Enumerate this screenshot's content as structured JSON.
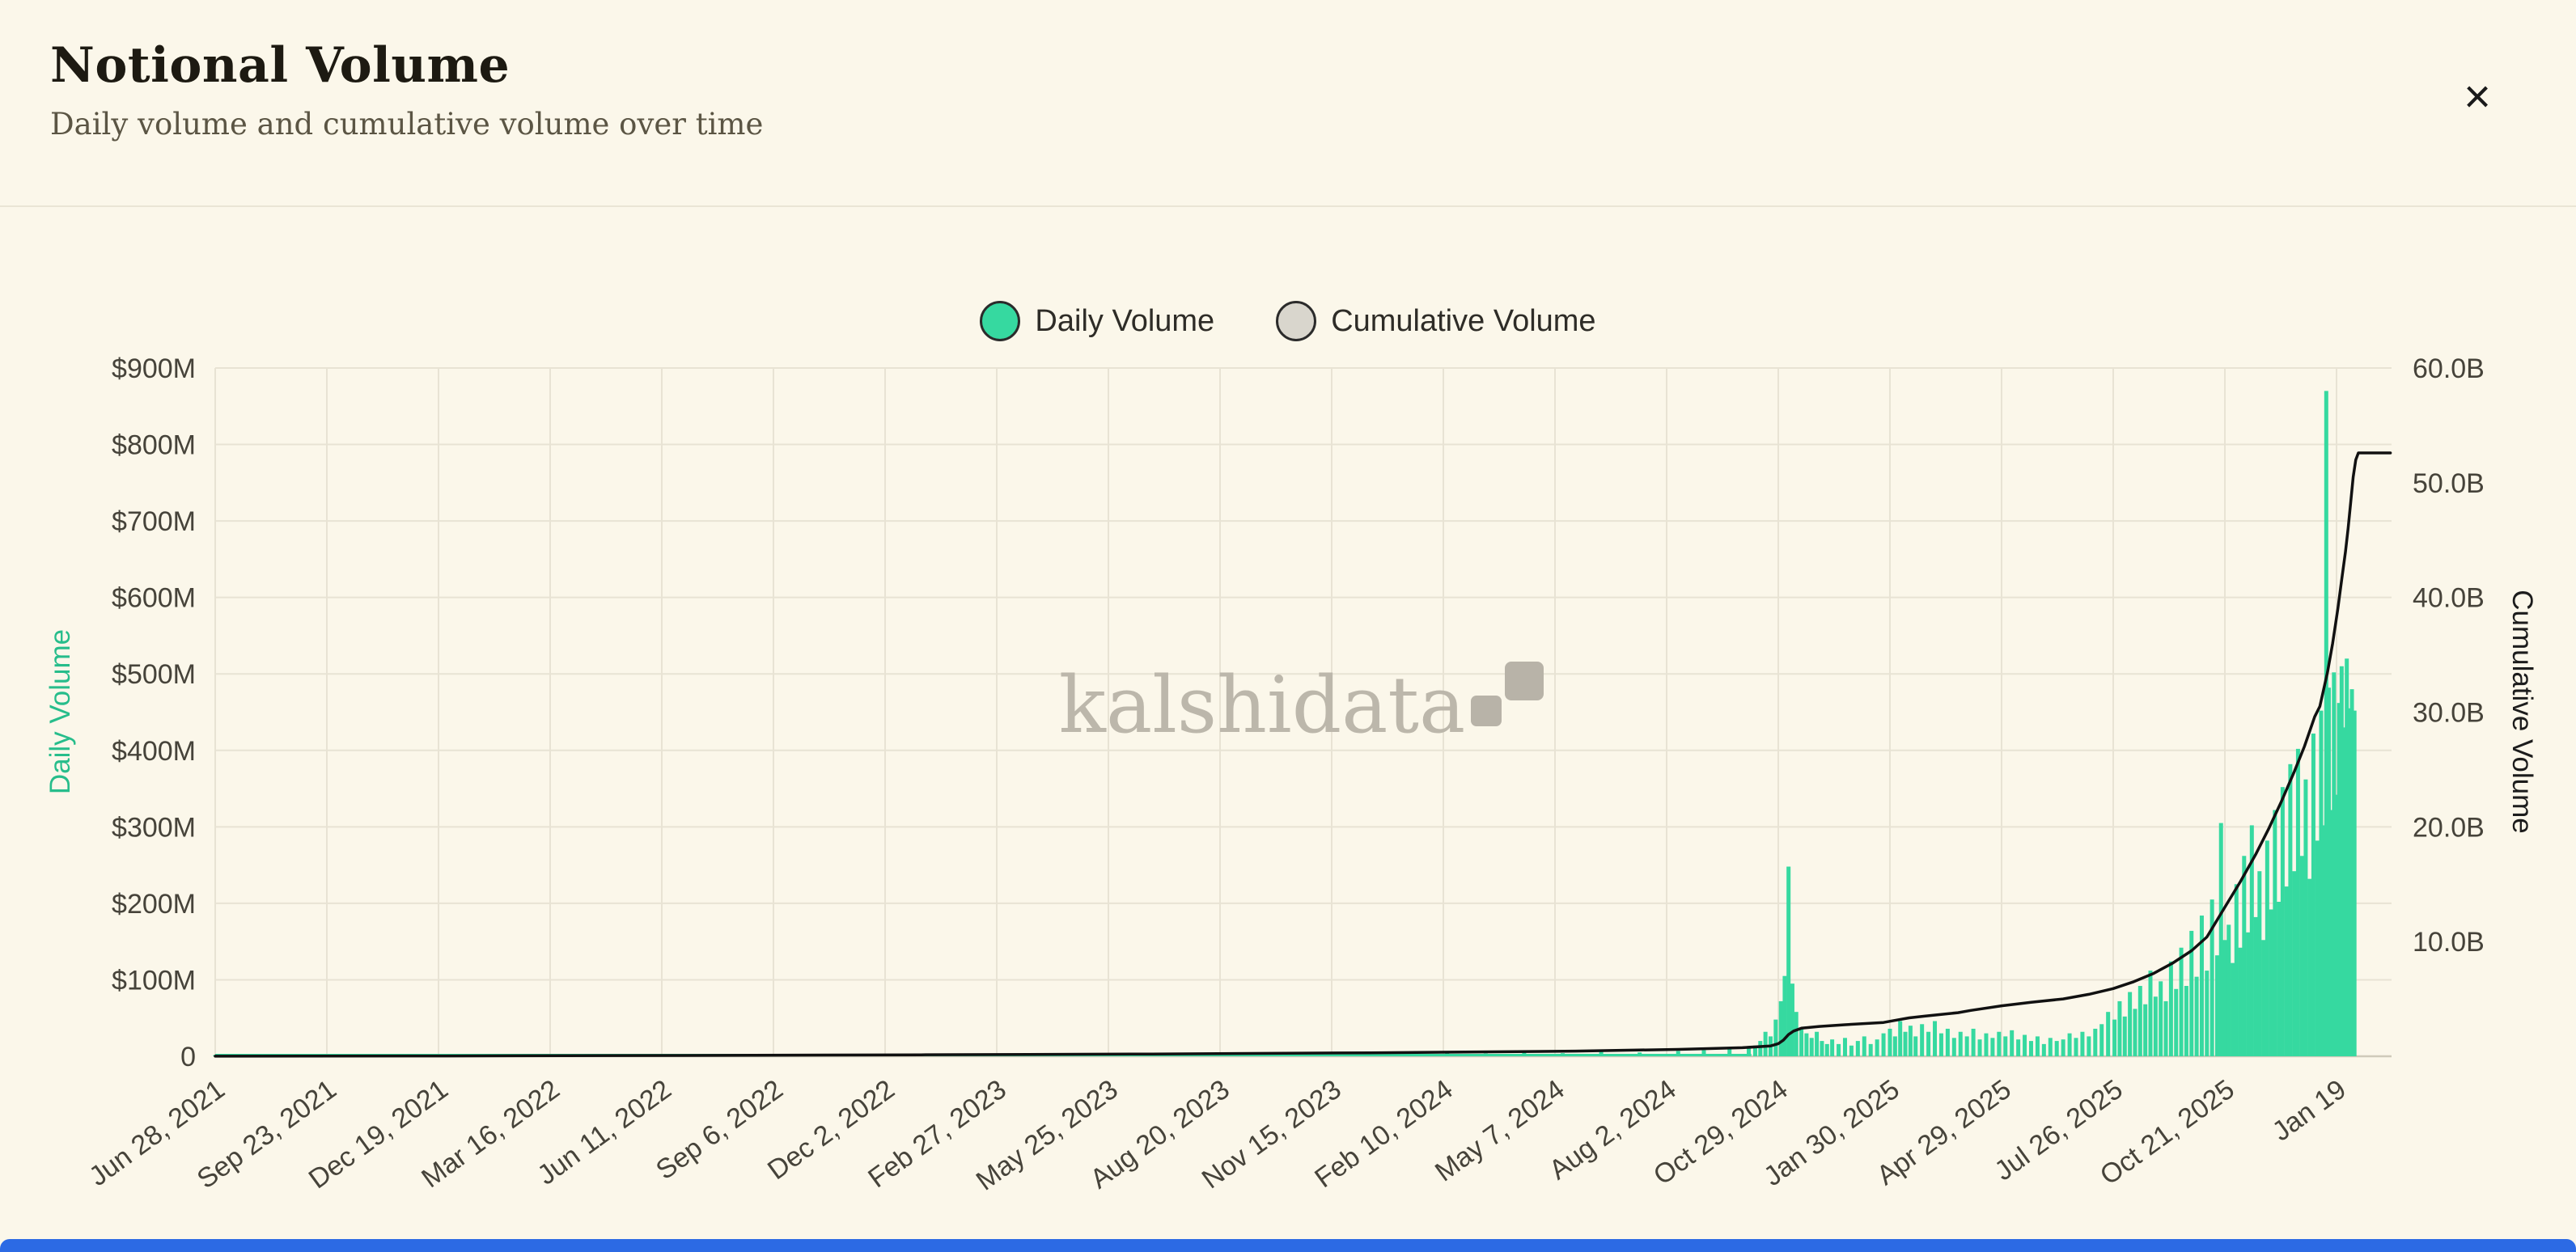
{
  "header": {
    "title": "Notional Volume",
    "subtitle": "Daily volume and cumulative volume over time",
    "close_label": "×"
  },
  "legend": [
    {
      "label": "Daily Volume",
      "color": "#36d9a0"
    },
    {
      "label": "Cumulative Volume",
      "color": "#d9d6cd"
    }
  ],
  "watermark": {
    "text": "kalshidata"
  },
  "colors": {
    "background": "#fbf7ea",
    "bar_green": "#36d9a0",
    "line_black": "#111111",
    "grid": "#e8e3d4",
    "axis_left_title": "#27bd8b",
    "watermark_gray": "#bcb7ab"
  },
  "chart_data": {
    "type": "bar+line",
    "title": "Notional Volume",
    "grid": true,
    "legend_position": "top-center",
    "y_left": {
      "label": "Daily Volume",
      "unit": "USD millions",
      "min": 0,
      "max": 900,
      "ticks": [
        "$900M",
        "$800M",
        "$700M",
        "$600M",
        "$500M",
        "$400M",
        "$300M",
        "$200M",
        "$100M",
        "0"
      ]
    },
    "y_right": {
      "label": "Cumulative Volume",
      "unit": "USD billions",
      "min": 0,
      "max": 60,
      "ticks": [
        "60.0B",
        "50.0B",
        "40.0B",
        "30.0B",
        "20.0B",
        "10.0B"
      ]
    },
    "x_ticks": [
      "Jun 28, 2021",
      "Sep 23, 2021",
      "Dec 19, 2021",
      "Mar 16, 2022",
      "Jun 11, 2022",
      "Sep 6, 2022",
      "Dec 2, 2022",
      "Feb 27, 2023",
      "May 25, 2023",
      "Aug 20, 2023",
      "Nov 15, 2023",
      "Feb 10, 2024",
      "May 7, 2024",
      "Aug 2, 2024",
      "Oct 29, 2024",
      "Jan 30, 2025",
      "Apr 29, 2025",
      "Jul 26, 2025",
      "Oct 21, 2025",
      "Jan 19"
    ],
    "x_tick_interval_days": 87,
    "x_origin_date": "Jun 28, 2021",
    "daily_volume_musd": [
      [
        0,
        0.3
      ],
      [
        30,
        0.4
      ],
      [
        60,
        0.5
      ],
      [
        90,
        0.8
      ],
      [
        120,
        0.6
      ],
      [
        150,
        0.9
      ],
      [
        180,
        1.0
      ],
      [
        210,
        0.8
      ],
      [
        240,
        1.2
      ],
      [
        270,
        1.0
      ],
      [
        300,
        1.3
      ],
      [
        330,
        1.1
      ],
      [
        360,
        1.5
      ],
      [
        390,
        1.2
      ],
      [
        420,
        1.8
      ],
      [
        450,
        1.4
      ],
      [
        480,
        2.0
      ],
      [
        510,
        1.6
      ],
      [
        540,
        2.2
      ],
      [
        570,
        1.8
      ],
      [
        600,
        2.5
      ],
      [
        630,
        2.0
      ],
      [
        660,
        2.8
      ],
      [
        690,
        2.2
      ],
      [
        720,
        3.0
      ],
      [
        750,
        2.4
      ],
      [
        780,
        3.2
      ],
      [
        810,
        2.6
      ],
      [
        840,
        3.5
      ],
      [
        870,
        2.8
      ],
      [
        900,
        4.0
      ],
      [
        930,
        3.2
      ],
      [
        960,
        4.5
      ],
      [
        990,
        3.6
      ],
      [
        1020,
        5.0
      ],
      [
        1050,
        4.0
      ],
      [
        1080,
        6.0
      ],
      [
        1110,
        5.0
      ],
      [
        1140,
        7.0
      ],
      [
        1160,
        8.0
      ],
      [
        1180,
        10
      ],
      [
        1195,
        12
      ],
      [
        1200,
        14
      ],
      [
        1204,
        20
      ],
      [
        1208,
        32
      ],
      [
        1212,
        26
      ],
      [
        1216,
        48
      ],
      [
        1220,
        72
      ],
      [
        1223,
        105
      ],
      [
        1226,
        248
      ],
      [
        1229,
        95
      ],
      [
        1232,
        58
      ],
      [
        1236,
        36
      ],
      [
        1240,
        30
      ],
      [
        1244,
        24
      ],
      [
        1248,
        32
      ],
      [
        1252,
        20
      ],
      [
        1256,
        16
      ],
      [
        1260,
        22
      ],
      [
        1265,
        16
      ],
      [
        1270,
        24
      ],
      [
        1275,
        14
      ],
      [
        1280,
        20
      ],
      [
        1285,
        26
      ],
      [
        1290,
        16
      ],
      [
        1295,
        22
      ],
      [
        1300,
        30
      ],
      [
        1305,
        36
      ],
      [
        1309,
        26
      ],
      [
        1313,
        46
      ],
      [
        1317,
        32
      ],
      [
        1321,
        40
      ],
      [
        1325,
        26
      ],
      [
        1330,
        42
      ],
      [
        1335,
        32
      ],
      [
        1340,
        46
      ],
      [
        1345,
        30
      ],
      [
        1350,
        36
      ],
      [
        1355,
        24
      ],
      [
        1360,
        32
      ],
      [
        1365,
        26
      ],
      [
        1370,
        36
      ],
      [
        1375,
        22
      ],
      [
        1380,
        30
      ],
      [
        1385,
        24
      ],
      [
        1390,
        32
      ],
      [
        1395,
        26
      ],
      [
        1400,
        34
      ],
      [
        1405,
        22
      ],
      [
        1410,
        28
      ],
      [
        1415,
        20
      ],
      [
        1420,
        26
      ],
      [
        1425,
        16
      ],
      [
        1430,
        24
      ],
      [
        1435,
        20
      ],
      [
        1440,
        22
      ],
      [
        1445,
        30
      ],
      [
        1450,
        24
      ],
      [
        1455,
        32
      ],
      [
        1460,
        26
      ],
      [
        1465,
        36
      ],
      [
        1470,
        42
      ],
      [
        1475,
        58
      ],
      [
        1480,
        48
      ],
      [
        1484,
        72
      ],
      [
        1488,
        52
      ],
      [
        1492,
        84
      ],
      [
        1496,
        62
      ],
      [
        1500,
        92
      ],
      [
        1504,
        68
      ],
      [
        1508,
        112
      ],
      [
        1512,
        78
      ],
      [
        1516,
        98
      ],
      [
        1520,
        72
      ],
      [
        1524,
        124
      ],
      [
        1528,
        88
      ],
      [
        1532,
        142
      ],
      [
        1536,
        92
      ],
      [
        1540,
        164
      ],
      [
        1544,
        104
      ],
      [
        1548,
        184
      ],
      [
        1552,
        112
      ],
      [
        1556,
        205
      ],
      [
        1560,
        132
      ],
      [
        1563,
        305
      ],
      [
        1566,
        152
      ],
      [
        1569,
        172
      ],
      [
        1572,
        122
      ],
      [
        1575,
        225
      ],
      [
        1578,
        142
      ],
      [
        1581,
        262
      ],
      [
        1584,
        162
      ],
      [
        1587,
        302
      ],
      [
        1590,
        182
      ],
      [
        1593,
        242
      ],
      [
        1596,
        152
      ],
      [
        1599,
        282
      ],
      [
        1602,
        192
      ],
      [
        1605,
        322
      ],
      [
        1608,
        202
      ],
      [
        1611,
        352
      ],
      [
        1614,
        222
      ],
      [
        1617,
        382
      ],
      [
        1620,
        242
      ],
      [
        1623,
        402
      ],
      [
        1626,
        262
      ],
      [
        1629,
        362
      ],
      [
        1632,
        232
      ],
      [
        1635,
        422
      ],
      [
        1638,
        282
      ],
      [
        1641,
        452
      ],
      [
        1643,
        302
      ],
      [
        1645,
        870
      ],
      [
        1647,
        482
      ],
      [
        1649,
        322
      ],
      [
        1651,
        502
      ],
      [
        1653,
        342
      ],
      [
        1655,
        462
      ],
      [
        1657,
        510
      ],
      [
        1659,
        430
      ],
      [
        1661,
        520
      ],
      [
        1663,
        455
      ],
      [
        1665,
        480
      ],
      [
        1667,
        452
      ]
    ],
    "cumulative_volume_busd": [
      [
        0,
        0.01
      ],
      [
        180,
        0.03
      ],
      [
        365,
        0.07
      ],
      [
        550,
        0.13
      ],
      [
        730,
        0.2
      ],
      [
        900,
        0.3
      ],
      [
        1060,
        0.45
      ],
      [
        1140,
        0.6
      ],
      [
        1190,
        0.75
      ],
      [
        1212,
        0.9
      ],
      [
        1218,
        1.1
      ],
      [
        1222,
        1.4
      ],
      [
        1226,
        1.9
      ],
      [
        1230,
        2.2
      ],
      [
        1236,
        2.45
      ],
      [
        1250,
        2.6
      ],
      [
        1270,
        2.75
      ],
      [
        1300,
        2.95
      ],
      [
        1310,
        3.15
      ],
      [
        1320,
        3.35
      ],
      [
        1332,
        3.5
      ],
      [
        1345,
        3.65
      ],
      [
        1358,
        3.8
      ],
      [
        1368,
        4.0
      ],
      [
        1392,
        4.4
      ],
      [
        1415,
        4.7
      ],
      [
        1440,
        5.0
      ],
      [
        1460,
        5.4
      ],
      [
        1479,
        5.9
      ],
      [
        1495,
        6.5
      ],
      [
        1510,
        7.2
      ],
      [
        1525,
        8.1
      ],
      [
        1540,
        9.2
      ],
      [
        1552,
        10.4
      ],
      [
        1566,
        13.0
      ],
      [
        1578,
        15.2
      ],
      [
        1590,
        17.6
      ],
      [
        1600,
        19.8
      ],
      [
        1610,
        22.2
      ],
      [
        1620,
        24.8
      ],
      [
        1628,
        27.0
      ],
      [
        1636,
        29.6
      ],
      [
        1640,
        30.5
      ],
      [
        1646,
        33.5
      ],
      [
        1650,
        36.0
      ],
      [
        1654,
        39.0
      ],
      [
        1657,
        41.5
      ],
      [
        1660,
        44.0
      ],
      [
        1662,
        46.0
      ],
      [
        1664,
        48.2
      ],
      [
        1666,
        50.5
      ],
      [
        1668,
        52.0
      ],
      [
        1670,
        52.6
      ],
      [
        1695,
        52.6
      ]
    ]
  }
}
